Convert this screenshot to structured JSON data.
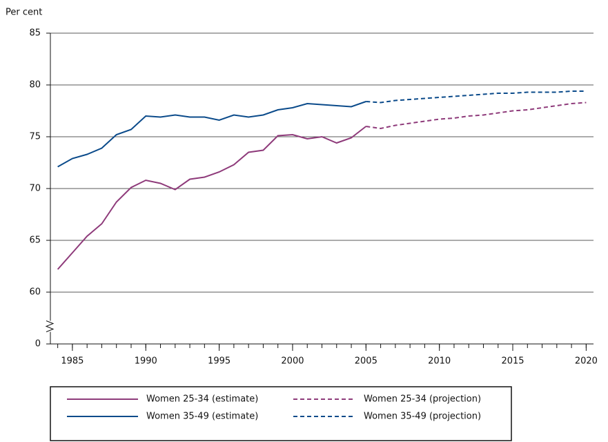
{
  "chart_data": {
    "type": "line",
    "ylabel": "Per cent",
    "x": [
      1984,
      1985,
      1986,
      1987,
      1988,
      1989,
      1990,
      1991,
      1992,
      1993,
      1994,
      1995,
      1996,
      1997,
      1998,
      1999,
      2000,
      2001,
      2002,
      2003,
      2004,
      2005,
      2006,
      2007,
      2008,
      2009,
      2010,
      2011,
      2012,
      2013,
      2014,
      2015,
      2016,
      2017,
      2018,
      2019,
      2020
    ],
    "xlim": [
      1983.5,
      2020.5
    ],
    "xticks": [
      1985,
      1990,
      1995,
      2000,
      2005,
      2010,
      2015,
      2020
    ],
    "ylim": [
      0,
      85
    ],
    "yticks": [
      0,
      60,
      65,
      70,
      75,
      80,
      85
    ],
    "axis_break": true,
    "grid": true,
    "legend": "bottom",
    "series": [
      {
        "name": "Women 25-34 (estimate)",
        "color": "#8e3a7a",
        "style": "solid",
        "values": [
          62.2,
          63.8,
          65.4,
          66.6,
          68.7,
          70.1,
          70.8,
          70.5,
          69.9,
          70.9,
          71.1,
          71.6,
          72.3,
          73.5,
          73.7,
          75.1,
          75.2,
          74.8,
          75.0,
          74.4,
          74.9,
          76.0,
          null,
          null,
          null,
          null,
          null,
          null,
          null,
          null,
          null,
          null,
          null,
          null,
          null,
          null,
          null
        ]
      },
      {
        "name": "Women 25-34 (projection)",
        "color": "#8e3a7a",
        "style": "dashed",
        "values": [
          null,
          null,
          null,
          null,
          null,
          null,
          null,
          null,
          null,
          null,
          null,
          null,
          null,
          null,
          null,
          null,
          null,
          null,
          null,
          null,
          null,
          76.0,
          75.8,
          76.1,
          76.3,
          76.5,
          76.7,
          76.8,
          77.0,
          77.1,
          77.3,
          77.5,
          77.6,
          77.8,
          78.0,
          78.2,
          78.3
        ]
      },
      {
        "name": "Women 35-49 (estimate)",
        "color": "#0a4a8a",
        "style": "solid",
        "values": [
          72.1,
          72.9,
          73.3,
          73.9,
          75.2,
          75.7,
          77.0,
          76.9,
          77.1,
          76.9,
          76.9,
          76.6,
          77.1,
          76.9,
          77.1,
          77.6,
          77.8,
          78.2,
          78.1,
          78.0,
          77.9,
          78.4,
          null,
          null,
          null,
          null,
          null,
          null,
          null,
          null,
          null,
          null,
          null,
          null,
          null,
          null,
          null
        ]
      },
      {
        "name": "Women 35-49 (projection)",
        "color": "#0a4a8a",
        "style": "dashed",
        "values": [
          null,
          null,
          null,
          null,
          null,
          null,
          null,
          null,
          null,
          null,
          null,
          null,
          null,
          null,
          null,
          null,
          null,
          null,
          null,
          null,
          null,
          78.4,
          78.3,
          78.5,
          78.6,
          78.7,
          78.8,
          78.9,
          79.0,
          79.1,
          79.2,
          79.2,
          79.3,
          79.3,
          79.3,
          79.4,
          79.4
        ]
      }
    ]
  }
}
